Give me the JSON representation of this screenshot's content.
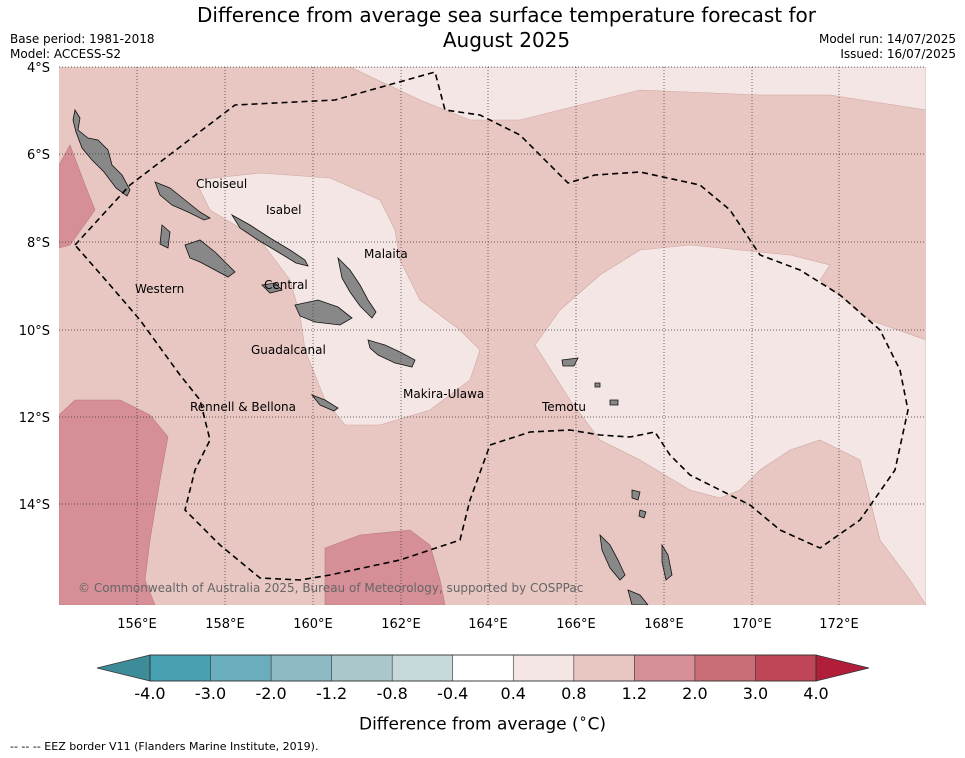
{
  "title_line1": "Difference from average sea surface temperature forecast for",
  "title_line2": "August 2025",
  "base_period": "Base period: 1981-2018",
  "model": "Model: ACCESS-S2",
  "model_run": "Model run: 14/07/2025",
  "issued": "Issued: 16/07/2025",
  "lat_labels": [
    "4°S",
    "6°S",
    "8°S",
    "10°S",
    "12°S",
    "14°S"
  ],
  "lon_labels": [
    "156°E",
    "158°E",
    "160°E",
    "162°E",
    "164°E",
    "166°E",
    "168°E",
    "170°E",
    "172°E"
  ],
  "regions": [
    "Choiseul",
    "Isabel",
    "Malaita",
    "Western",
    "Central",
    "Guadalcanal",
    "Makira-Ulawa",
    "Rennell & Bellona",
    "Temotu"
  ],
  "copyright": "© Commonwealth of Australia 2025, Bureau of Meteorology, supported by COSPPac",
  "colorbar": {
    "ticks": [
      "-4.0",
      "-3.0",
      "-2.0",
      "-1.2",
      "-0.8",
      "-0.4",
      "0.4",
      "0.8",
      "1.2",
      "2.0",
      "3.0",
      "4.0"
    ],
    "colors": [
      "#47a1b3",
      "#6aadbd",
      "#8cbbc4",
      "#aac7cb",
      "#c8d9dc",
      "#ffffff",
      "#f4e6e4",
      "#e8c7c2",
      "#d68f97",
      "#c96d76",
      "#bf4657"
    ],
    "under_color": "#3e8c9a",
    "over_color": "#b01e3a",
    "title": "Difference from average ($^\\circ$C)"
  },
  "footnote": "--  --  -- EEZ border V11 (Flanders Marine Institute, 2019)."
}
